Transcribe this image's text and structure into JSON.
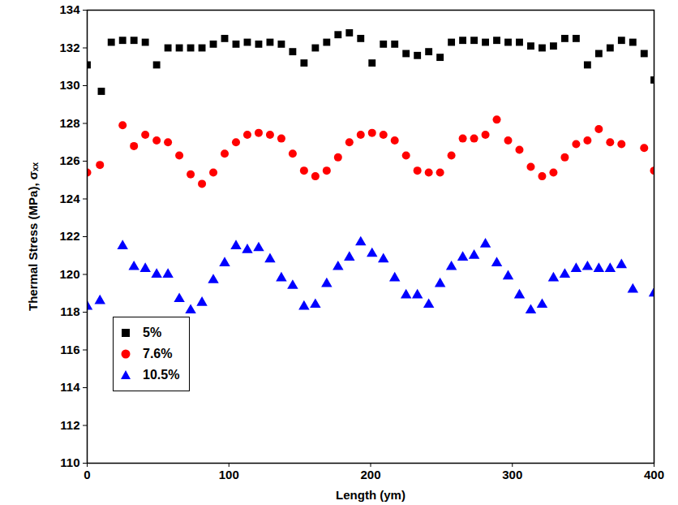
{
  "chart_data": {
    "type": "scatter",
    "x_label": "Length (ym)",
    "y_label": "Thermal Stress (MPa), σₓₓ",
    "xlim": [
      0,
      400
    ],
    "xticks": [
      0,
      100,
      200,
      300,
      400
    ],
    "ylim": [
      110,
      134
    ],
    "yticks": [
      110,
      112,
      114,
      116,
      118,
      120,
      122,
      124,
      126,
      128,
      130,
      132,
      134
    ],
    "legend": "lower left",
    "series": [
      {
        "name": "5%",
        "color": "#000000",
        "marker": "square",
        "x": [
          0,
          10,
          17,
          25,
          33,
          41,
          49,
          57,
          65,
          73,
          81,
          89,
          97,
          105,
          113,
          121,
          129,
          137,
          145,
          153,
          161,
          169,
          177,
          185,
          193,
          201,
          209,
          217,
          225,
          233,
          241,
          249,
          257,
          265,
          273,
          281,
          289,
          297,
          305,
          313,
          321,
          329,
          337,
          345,
          353,
          361,
          369,
          377,
          385,
          393,
          400
        ],
        "values": [
          131.1,
          129.7,
          132.3,
          132.4,
          132.4,
          132.3,
          131.1,
          132.0,
          132.0,
          132.0,
          132.0,
          132.2,
          132.5,
          132.2,
          132.3,
          132.2,
          132.3,
          132.2,
          131.8,
          131.2,
          132.0,
          132.3,
          132.7,
          132.8,
          132.5,
          131.2,
          132.2,
          132.2,
          131.7,
          131.6,
          131.8,
          131.5,
          132.3,
          132.4,
          132.4,
          132.3,
          132.4,
          132.3,
          132.3,
          132.1,
          132.0,
          132.1,
          132.5,
          132.5,
          131.1,
          131.7,
          132.0,
          132.4,
          132.3,
          131.7,
          130.3
        ]
      },
      {
        "name": "7.6%",
        "color": "#ff0000",
        "marker": "circle",
        "x": [
          0,
          9,
          25,
          33,
          41,
          49,
          57,
          65,
          73,
          81,
          89,
          97,
          105,
          113,
          121,
          129,
          137,
          145,
          153,
          161,
          169,
          177,
          185,
          193,
          201,
          209,
          217,
          225,
          233,
          241,
          249,
          257,
          265,
          273,
          281,
          289,
          297,
          305,
          313,
          321,
          329,
          337,
          345,
          353,
          361,
          369,
          377,
          393,
          400
        ],
        "values": [
          125.4,
          125.8,
          127.9,
          126.8,
          127.4,
          127.1,
          127.0,
          126.3,
          125.3,
          124.8,
          125.4,
          126.4,
          127.0,
          127.4,
          127.5,
          127.4,
          127.2,
          126.4,
          125.5,
          125.2,
          125.5,
          126.2,
          127.0,
          127.4,
          127.5,
          127.4,
          127.1,
          126.3,
          125.5,
          125.4,
          125.4,
          126.3,
          127.2,
          127.2,
          127.4,
          128.2,
          127.1,
          126.6,
          125.7,
          125.2,
          125.4,
          126.2,
          126.9,
          127.1,
          127.7,
          127.0,
          126.9,
          126.7,
          125.5
        ]
      },
      {
        "name": "10.5%",
        "color": "#0000ff",
        "marker": "triangle",
        "x": [
          0,
          9,
          25,
          33,
          41,
          49,
          57,
          65,
          73,
          81,
          89,
          97,
          105,
          113,
          121,
          129,
          137,
          145,
          153,
          161,
          169,
          177,
          185,
          193,
          201,
          209,
          217,
          225,
          233,
          241,
          249,
          257,
          265,
          273,
          281,
          289,
          297,
          305,
          313,
          321,
          329,
          337,
          345,
          353,
          361,
          369,
          377,
          385,
          400
        ],
        "values": [
          118.3,
          118.6,
          121.5,
          120.4,
          120.3,
          120.0,
          120.0,
          118.7,
          118.1,
          118.5,
          119.7,
          120.6,
          121.5,
          121.3,
          121.4,
          120.8,
          119.8,
          119.4,
          118.3,
          118.4,
          119.5,
          120.4,
          120.9,
          121.7,
          121.1,
          120.8,
          119.8,
          118.9,
          118.9,
          118.4,
          119.5,
          120.4,
          120.9,
          121.0,
          121.6,
          120.6,
          119.9,
          118.9,
          118.1,
          118.4,
          119.8,
          120.0,
          120.3,
          120.4,
          120.3,
          120.3,
          120.5,
          119.2,
          119.0
        ]
      }
    ]
  }
}
